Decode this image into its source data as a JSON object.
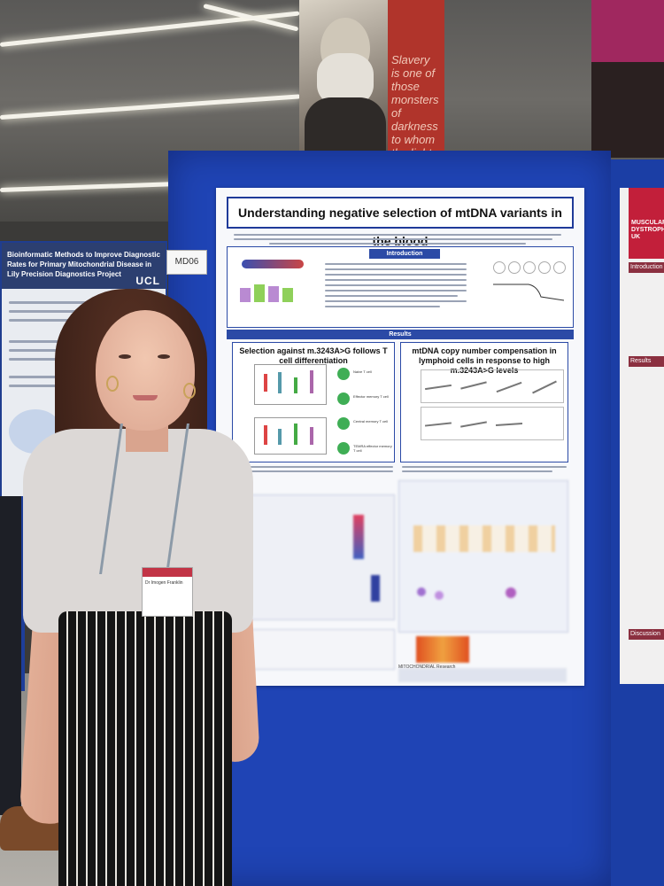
{
  "banner": {
    "quote": "Slavery is one of those monsters of darkness to whom the light of truth is death."
  },
  "left_poster": {
    "title": "Bioinformatic Methods to Improve Diagnostic Rates for Primary Mitochondrial Disease in Lily Precision Diagnostics Project",
    "institution": "UCL"
  },
  "board_label": "MD06",
  "poster": {
    "title": "Understanding negative selection of mtDNA variants in the blood",
    "sections": {
      "introduction": "Introduction",
      "results": "Results"
    },
    "panel_left_title": "Selection against m.3243A>G follows T cell differentiation",
    "panel_right_title": "mtDNA copy number compensation in lymphoid cells in response to high m.3243A>G levels",
    "tcell_stages": [
      "Naive T cell",
      "Effector memory T cell",
      "Central memory T cell",
      "TEMRA effector memory T cell"
    ],
    "footer_label": "MITOCHONDRIAL Research"
  },
  "right_poster": {
    "heading": "MUSCULAR DYSTROPHY UK",
    "sections": [
      "Introduction",
      "Results",
      "Discussion"
    ]
  },
  "badge": {
    "name": "Dr Imogen Franklin"
  },
  "colors": {
    "board_blue": "#1f44b5",
    "poster_accent": "#2b4aa6",
    "banner_red": "#b0342b"
  }
}
